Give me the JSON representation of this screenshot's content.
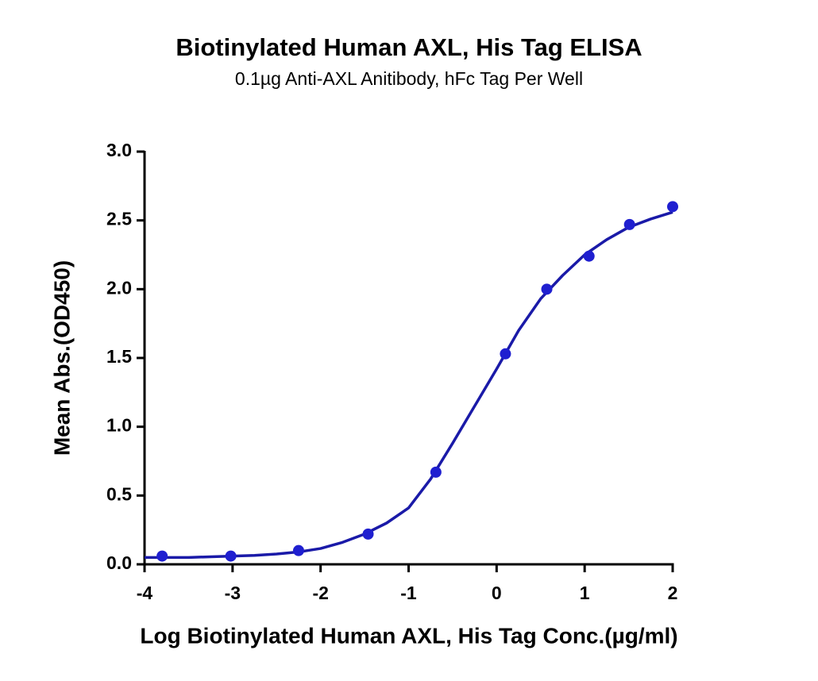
{
  "chart_data": {
    "type": "scatter",
    "title": "Biotinylated Human AXL, His Tag ELISA",
    "subtitle": "0.1µg Anti-AXL Anitibody, hFc Tag Per Well",
    "x_label": "Log Biotinylated Human AXL, His Tag Conc.(µg/ml)",
    "y_label": "Mean Abs.(OD450)",
    "x": [
      -3.8,
      -3.02,
      -2.25,
      -1.46,
      -0.69,
      0.1,
      0.57,
      1.05,
      1.51,
      2.0
    ],
    "values": [
      0.06,
      0.06,
      0.1,
      0.22,
      0.67,
      1.53,
      2.0,
      2.24,
      2.47,
      2.6
    ],
    "color": "#1f1fd0",
    "curve": {
      "x": [
        -4,
        -3.75,
        -3.5,
        -3.25,
        -3,
        -2.75,
        -2.5,
        -2.25,
        -2,
        -1.75,
        -1.5,
        -1.25,
        -1,
        -0.75,
        -0.5,
        -0.25,
        0,
        0.25,
        0.5,
        0.75,
        1,
        1.25,
        1.5,
        1.75,
        2
      ],
      "values": [
        0.05,
        0.05,
        0.05,
        0.055,
        0.06,
        0.065,
        0.075,
        0.09,
        0.115,
        0.16,
        0.22,
        0.3,
        0.41,
        0.62,
        0.88,
        1.15,
        1.42,
        1.7,
        1.93,
        2.1,
        2.25,
        2.36,
        2.45,
        2.51,
        2.56
      ],
      "color": "#1a1aa8"
    },
    "xlim": [
      -4,
      2
    ],
    "xticks": [
      -4,
      -3,
      -2,
      -1,
      0,
      1,
      2
    ],
    "ylim": [
      0,
      3
    ],
    "yticks": [
      {
        "value": 0,
        "label": "0.0"
      },
      {
        "value": 0.5,
        "label": "0.5"
      },
      {
        "value": 1,
        "label": "1.0"
      },
      {
        "value": 1.5,
        "label": "1.5"
      },
      {
        "value": 2,
        "label": "2.0"
      },
      {
        "value": 2.5,
        "label": "2.5"
      },
      {
        "value": 3,
        "label": "3.0"
      }
    ],
    "grid": false
  }
}
